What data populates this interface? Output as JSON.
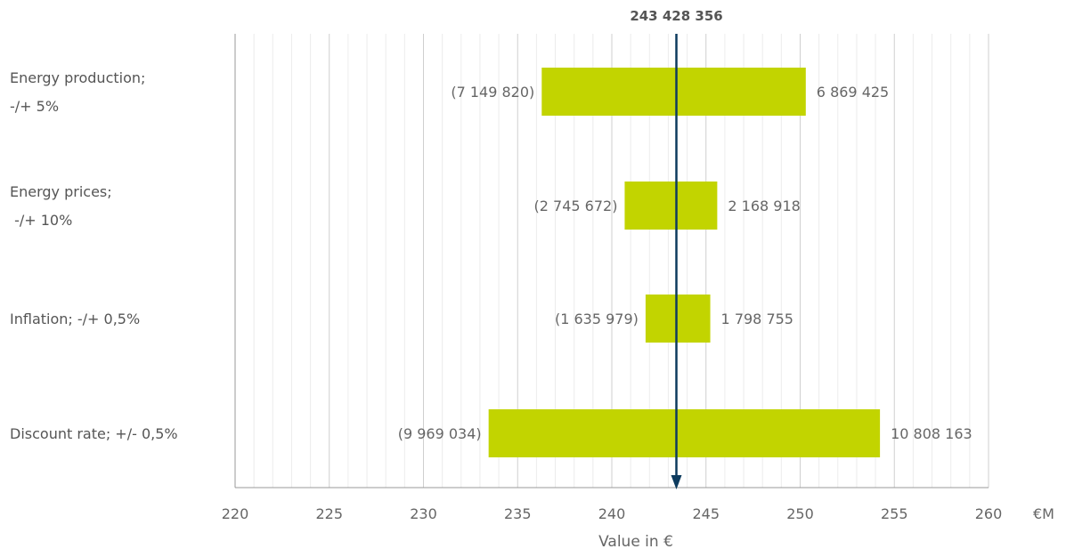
{
  "chart_data": {
    "type": "bar",
    "subtype": "tornado",
    "baseline": 243.428356,
    "baseline_label": "243 428 356",
    "categories": [
      [
        "Energy production;",
        "-/+ 5%"
      ],
      [
        "Energy prices;",
        " -/+ 10%"
      ],
      [
        "Inflation; -/+ 0,5%"
      ],
      [
        "Discount rate; +/- 0,5%"
      ]
    ],
    "bars": [
      {
        "low": 236.278536,
        "high": 250.297781,
        "low_label": "(7 149 820)",
        "high_label": "6 869 425"
      },
      {
        "low": 240.682684,
        "high": 245.597274,
        "low_label": "(2 745 672)",
        "high_label": "2 168 918"
      },
      {
        "low": 241.792377,
        "high": 245.227111,
        "low_label": "(1 635 979)",
        "high_label": "1 798 755"
      },
      {
        "low": 233.459322,
        "high": 254.236519,
        "low_label": "(9 969 034)",
        "high_label": "10 808 163"
      }
    ],
    "x_ticks": [
      "220",
      "225",
      "230",
      "235",
      "240",
      "245",
      "250",
      "255",
      "260"
    ],
    "x_unit": "€M",
    "xlabel": "Value in €",
    "xlim": [
      220,
      260
    ],
    "minor_step": 1,
    "grid": true,
    "bar_color": "#c2d400",
    "baseline_color": "#0d3b5e"
  }
}
